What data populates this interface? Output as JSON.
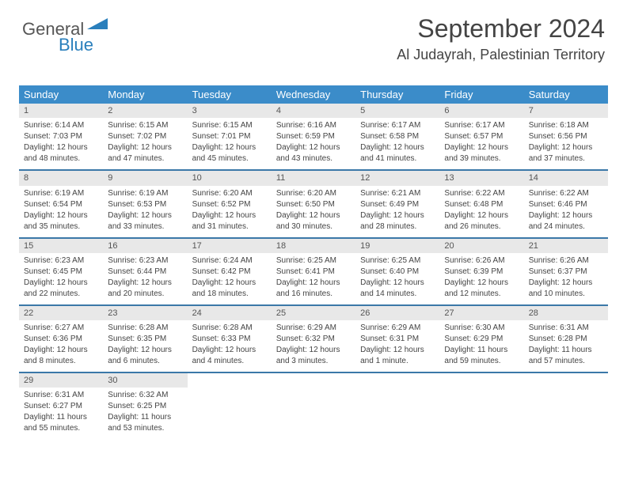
{
  "logo": {
    "part1": "General",
    "part2": "Blue"
  },
  "header": {
    "month_title": "September 2024",
    "location": "Al Judayrah, Palestinian Territory"
  },
  "calendar": {
    "weekdays": [
      "Sunday",
      "Monday",
      "Tuesday",
      "Wednesday",
      "Thursday",
      "Friday",
      "Saturday"
    ],
    "header_bg": "#3b8cc9",
    "header_fg": "#ffffff",
    "rule_color": "#3b78a8",
    "daynum_bg": "#e8e8e8",
    "days": [
      {
        "n": "1",
        "sr": "Sunrise: 6:14 AM",
        "ss": "Sunset: 7:03 PM",
        "d1": "Daylight: 12 hours",
        "d2": "and 48 minutes."
      },
      {
        "n": "2",
        "sr": "Sunrise: 6:15 AM",
        "ss": "Sunset: 7:02 PM",
        "d1": "Daylight: 12 hours",
        "d2": "and 47 minutes."
      },
      {
        "n": "3",
        "sr": "Sunrise: 6:15 AM",
        "ss": "Sunset: 7:01 PM",
        "d1": "Daylight: 12 hours",
        "d2": "and 45 minutes."
      },
      {
        "n": "4",
        "sr": "Sunrise: 6:16 AM",
        "ss": "Sunset: 6:59 PM",
        "d1": "Daylight: 12 hours",
        "d2": "and 43 minutes."
      },
      {
        "n": "5",
        "sr": "Sunrise: 6:17 AM",
        "ss": "Sunset: 6:58 PM",
        "d1": "Daylight: 12 hours",
        "d2": "and 41 minutes."
      },
      {
        "n": "6",
        "sr": "Sunrise: 6:17 AM",
        "ss": "Sunset: 6:57 PM",
        "d1": "Daylight: 12 hours",
        "d2": "and 39 minutes."
      },
      {
        "n": "7",
        "sr": "Sunrise: 6:18 AM",
        "ss": "Sunset: 6:56 PM",
        "d1": "Daylight: 12 hours",
        "d2": "and 37 minutes."
      },
      {
        "n": "8",
        "sr": "Sunrise: 6:19 AM",
        "ss": "Sunset: 6:54 PM",
        "d1": "Daylight: 12 hours",
        "d2": "and 35 minutes."
      },
      {
        "n": "9",
        "sr": "Sunrise: 6:19 AM",
        "ss": "Sunset: 6:53 PM",
        "d1": "Daylight: 12 hours",
        "d2": "and 33 minutes."
      },
      {
        "n": "10",
        "sr": "Sunrise: 6:20 AM",
        "ss": "Sunset: 6:52 PM",
        "d1": "Daylight: 12 hours",
        "d2": "and 31 minutes."
      },
      {
        "n": "11",
        "sr": "Sunrise: 6:20 AM",
        "ss": "Sunset: 6:50 PM",
        "d1": "Daylight: 12 hours",
        "d2": "and 30 minutes."
      },
      {
        "n": "12",
        "sr": "Sunrise: 6:21 AM",
        "ss": "Sunset: 6:49 PM",
        "d1": "Daylight: 12 hours",
        "d2": "and 28 minutes."
      },
      {
        "n": "13",
        "sr": "Sunrise: 6:22 AM",
        "ss": "Sunset: 6:48 PM",
        "d1": "Daylight: 12 hours",
        "d2": "and 26 minutes."
      },
      {
        "n": "14",
        "sr": "Sunrise: 6:22 AM",
        "ss": "Sunset: 6:46 PM",
        "d1": "Daylight: 12 hours",
        "d2": "and 24 minutes."
      },
      {
        "n": "15",
        "sr": "Sunrise: 6:23 AM",
        "ss": "Sunset: 6:45 PM",
        "d1": "Daylight: 12 hours",
        "d2": "and 22 minutes."
      },
      {
        "n": "16",
        "sr": "Sunrise: 6:23 AM",
        "ss": "Sunset: 6:44 PM",
        "d1": "Daylight: 12 hours",
        "d2": "and 20 minutes."
      },
      {
        "n": "17",
        "sr": "Sunrise: 6:24 AM",
        "ss": "Sunset: 6:42 PM",
        "d1": "Daylight: 12 hours",
        "d2": "and 18 minutes."
      },
      {
        "n": "18",
        "sr": "Sunrise: 6:25 AM",
        "ss": "Sunset: 6:41 PM",
        "d1": "Daylight: 12 hours",
        "d2": "and 16 minutes."
      },
      {
        "n": "19",
        "sr": "Sunrise: 6:25 AM",
        "ss": "Sunset: 6:40 PM",
        "d1": "Daylight: 12 hours",
        "d2": "and 14 minutes."
      },
      {
        "n": "20",
        "sr": "Sunrise: 6:26 AM",
        "ss": "Sunset: 6:39 PM",
        "d1": "Daylight: 12 hours",
        "d2": "and 12 minutes."
      },
      {
        "n": "21",
        "sr": "Sunrise: 6:26 AM",
        "ss": "Sunset: 6:37 PM",
        "d1": "Daylight: 12 hours",
        "d2": "and 10 minutes."
      },
      {
        "n": "22",
        "sr": "Sunrise: 6:27 AM",
        "ss": "Sunset: 6:36 PM",
        "d1": "Daylight: 12 hours",
        "d2": "and 8 minutes."
      },
      {
        "n": "23",
        "sr": "Sunrise: 6:28 AM",
        "ss": "Sunset: 6:35 PM",
        "d1": "Daylight: 12 hours",
        "d2": "and 6 minutes."
      },
      {
        "n": "24",
        "sr": "Sunrise: 6:28 AM",
        "ss": "Sunset: 6:33 PM",
        "d1": "Daylight: 12 hours",
        "d2": "and 4 minutes."
      },
      {
        "n": "25",
        "sr": "Sunrise: 6:29 AM",
        "ss": "Sunset: 6:32 PM",
        "d1": "Daylight: 12 hours",
        "d2": "and 3 minutes."
      },
      {
        "n": "26",
        "sr": "Sunrise: 6:29 AM",
        "ss": "Sunset: 6:31 PM",
        "d1": "Daylight: 12 hours",
        "d2": "and 1 minute."
      },
      {
        "n": "27",
        "sr": "Sunrise: 6:30 AM",
        "ss": "Sunset: 6:29 PM",
        "d1": "Daylight: 11 hours",
        "d2": "and 59 minutes."
      },
      {
        "n": "28",
        "sr": "Sunrise: 6:31 AM",
        "ss": "Sunset: 6:28 PM",
        "d1": "Daylight: 11 hours",
        "d2": "and 57 minutes."
      },
      {
        "n": "29",
        "sr": "Sunrise: 6:31 AM",
        "ss": "Sunset: 6:27 PM",
        "d1": "Daylight: 11 hours",
        "d2": "and 55 minutes."
      },
      {
        "n": "30",
        "sr": "Sunrise: 6:32 AM",
        "ss": "Sunset: 6:25 PM",
        "d1": "Daylight: 11 hours",
        "d2": "and 53 minutes."
      }
    ]
  }
}
